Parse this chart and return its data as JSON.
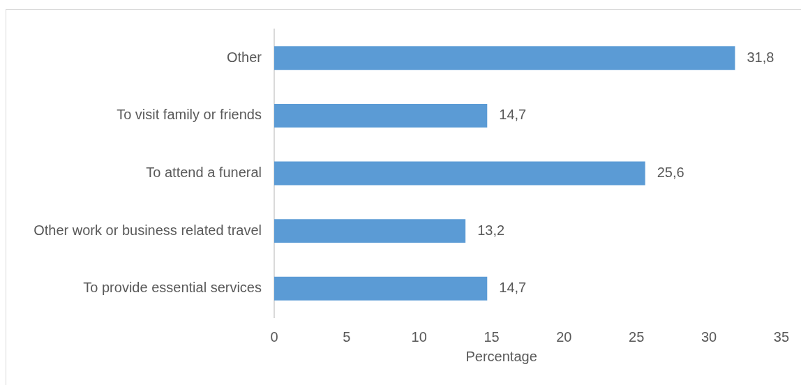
{
  "chart_data": {
    "type": "bar",
    "orientation": "horizontal",
    "categories": [
      "Other",
      "To visit family or friends",
      "To attend a funeral",
      "Other work or business related travel",
      "To provide essential services"
    ],
    "values": [
      31.8,
      14.7,
      25.6,
      13.2,
      14.7
    ],
    "value_labels": [
      "31,8",
      "14,7",
      "25,6",
      "13,2",
      "14,7"
    ],
    "color": "#5b9bd5",
    "xlabel": "Percentage",
    "xlim": [
      0,
      35
    ],
    "xticks": [
      0,
      5,
      10,
      15,
      20,
      25,
      30,
      35
    ],
    "grid": false,
    "legend": false
  }
}
